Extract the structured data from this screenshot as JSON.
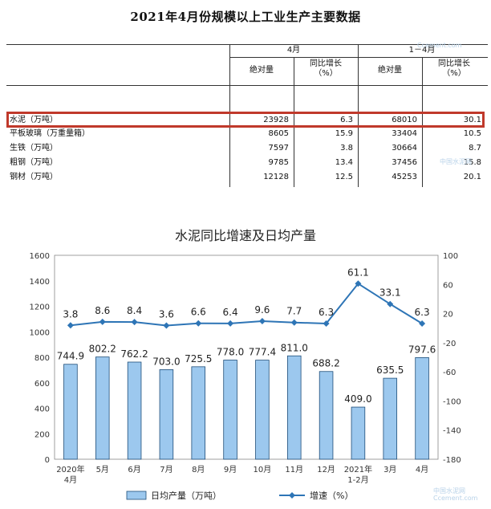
{
  "table": {
    "title": "2021年4月份规模以上工业生产主要数据",
    "group_headers": [
      "4月",
      "1－4月"
    ],
    "col_headers": [
      "绝对量",
      "同比增长（%）",
      "绝对量",
      "同比增长（%）"
    ],
    "rows": [
      {
        "name": "水泥（万吨）",
        "v1": "23928",
        "g1": "6.3",
        "v2": "68010",
        "g2": "30.1"
      },
      {
        "name": "平板玻璃（万重量箱）",
        "v1": "8605",
        "g1": "15.9",
        "v2": "33404",
        "g2": "10.5"
      },
      {
        "name": "生铁（万吨）",
        "v1": "7597",
        "g1": "3.8",
        "v2": "30664",
        "g2": "8.7"
      },
      {
        "name": "粗钢（万吨）",
        "v1": "9785",
        "g1": "13.4",
        "v2": "37456",
        "g2": "15.8"
      },
      {
        "name": "钢材（万吨）",
        "v1": "12128",
        "g1": "12.5",
        "v2": "45253",
        "g2": "20.1"
      }
    ],
    "highlight_row": 0
  },
  "watermark": {
    "text": "中国水泥网",
    "sub": "Ccement.com"
  },
  "chart_data": {
    "type": "bar+line",
    "title": "水泥同比增速及日均产量",
    "categories": [
      "2020年4月",
      "5月",
      "6月",
      "7月",
      "8月",
      "9月",
      "10月",
      "11月",
      "12月",
      "2021年1-2月",
      "3月",
      "4月"
    ],
    "series": [
      {
        "name": "日均产量（万吨）",
        "type": "bar",
        "axis": "left",
        "values": [
          744.9,
          802.2,
          762.2,
          703.0,
          725.5,
          778.0,
          777.4,
          811.0,
          688.2,
          409.0,
          635.5,
          797.6
        ]
      },
      {
        "name": "增速（%）",
        "type": "line",
        "axis": "right",
        "values": [
          3.8,
          8.6,
          8.4,
          3.6,
          6.6,
          6.4,
          9.6,
          7.7,
          6.3,
          61.1,
          33.1,
          6.3
        ]
      }
    ],
    "left_axis": {
      "min": 0,
      "max": 1600,
      "step": 200
    },
    "right_axis": {
      "min": -180,
      "max": 100,
      "step": 40
    },
    "legend_position": "bottom",
    "colors": {
      "bar_fill": "#9cc8ee",
      "bar_stroke": "#1f4e79",
      "line": "#2e75b6"
    }
  }
}
